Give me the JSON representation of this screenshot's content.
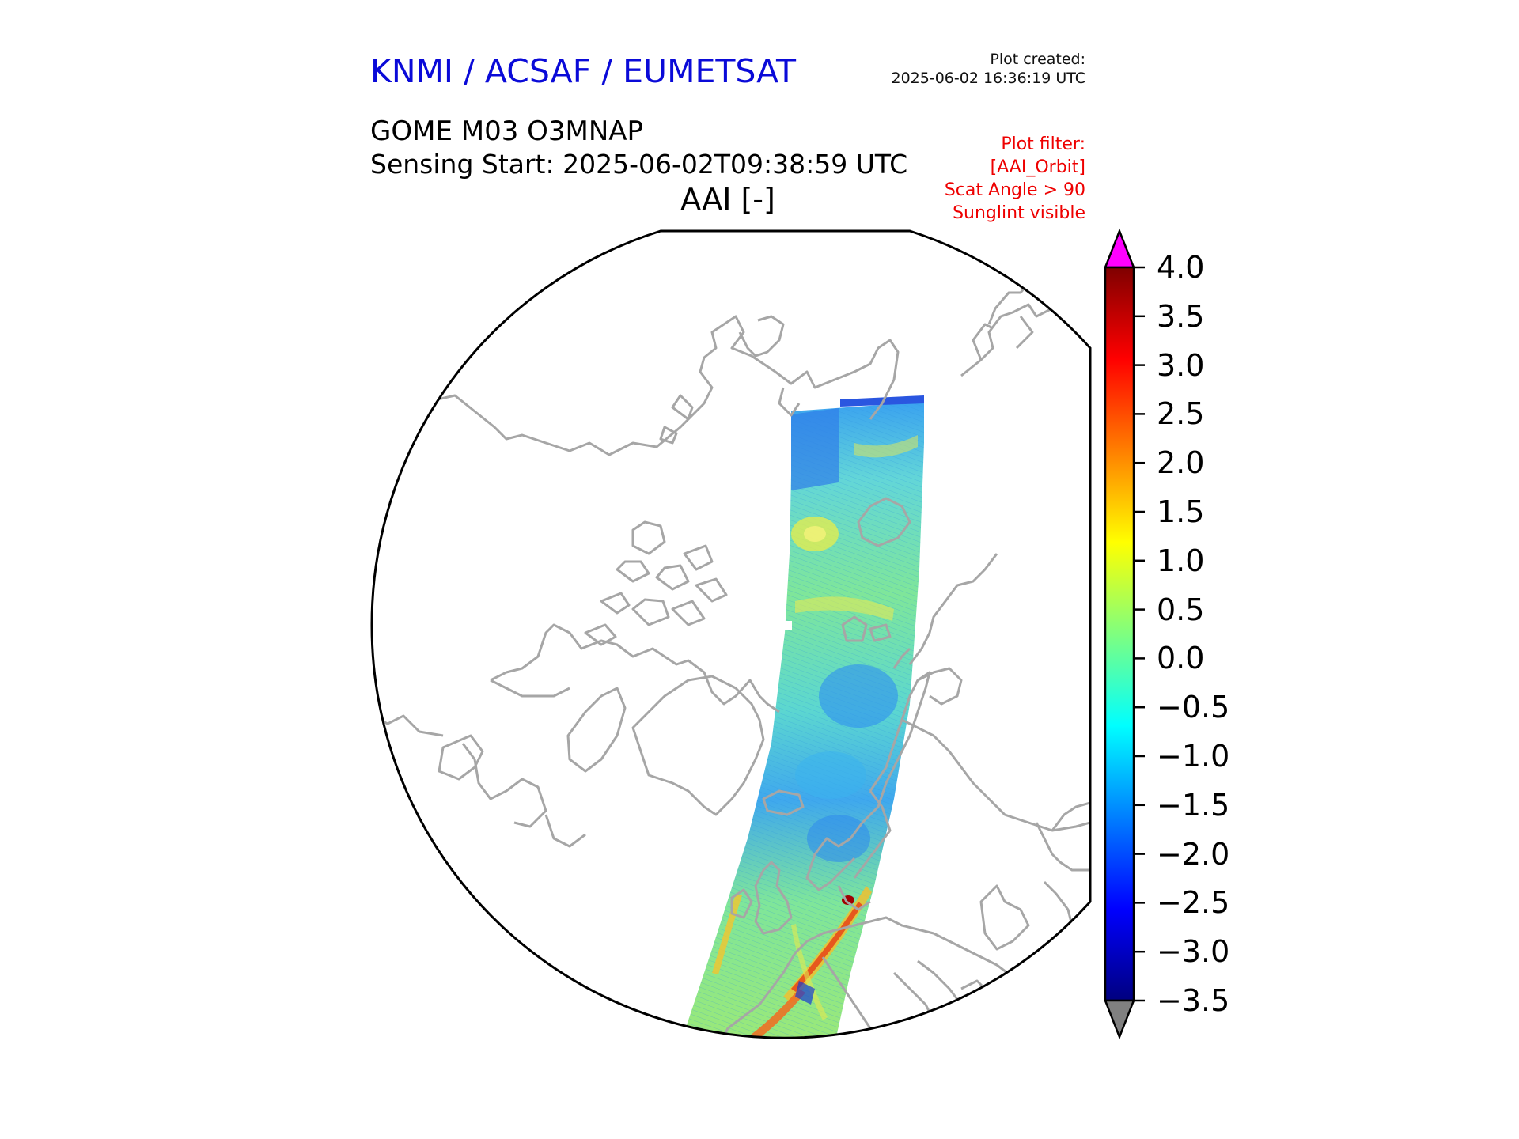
{
  "header": {
    "organization": "KNMI / ACSAF / EUMETSAT",
    "plot_created_label": "Plot created:",
    "plot_created_value": "2025-06-02 16:36:19 UTC",
    "product": "GOME M03 O3MNAP",
    "sensing_start": "Sensing Start: 2025-06-02T09:38:59 UTC",
    "variable_title": "AAI [-]"
  },
  "plot_filter": {
    "lines": [
      "Plot filter:",
      "[AAI_Orbit]",
      "Scat Angle > 90",
      "Sunglint visible"
    ]
  },
  "colorbar": {
    "ticks": [
      "4.0",
      "3.5",
      "3.0",
      "2.5",
      "2.0",
      "1.5",
      "1.0",
      "0.5",
      "0.0",
      "−0.5",
      "−1.0",
      "−1.5",
      "−2.0",
      "−2.5",
      "−3.0",
      "−3.5"
    ],
    "min": -3.5,
    "max": 4.0,
    "over_color": "#ff00ff",
    "under_color": "#808080",
    "stops": [
      "#00007f",
      "#0000ff",
      "#007fff",
      "#00ffff",
      "#7fff7f",
      "#ffff00",
      "#ff7f00",
      "#ff0000",
      "#7f0000"
    ]
  },
  "map": {
    "projection": "north polar stereographic",
    "coastline_color": "#a6a6a6",
    "swath_colors": {
      "base": "#7fe69a",
      "low": "#2a9cf0",
      "mid": "#5fe0c8",
      "high": "#e9ee4a",
      "peak": "#e23a1a"
    }
  }
}
